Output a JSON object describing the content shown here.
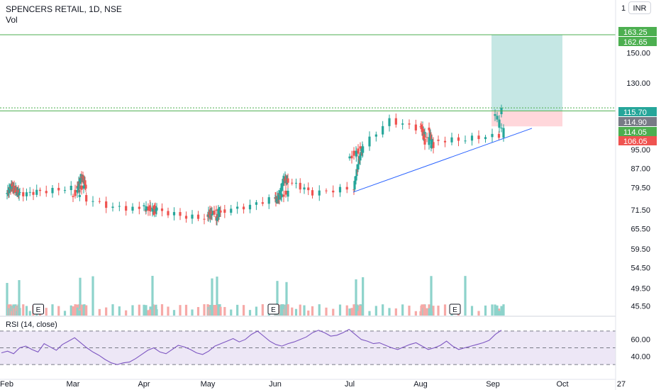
{
  "header": {
    "title": "SPENCERS RETAIL, 1D, NSE",
    "volume_label": "Vol",
    "currency_button": "INR",
    "currency_digit": "1"
  },
  "colors": {
    "up": "#26a69a",
    "down": "#ef5350",
    "volume_up": "#8dd3cb",
    "volume_down": "#f6a9a7",
    "level_line": "#4caf50",
    "trend_line": "#2962ff",
    "rsi_line": "#7e57c2",
    "rsi_band": "#ede7f6",
    "profit_zone": "#b2dfdb",
    "loss_zone": "#ffcdd2"
  },
  "chart_data": {
    "type": "candlestick",
    "title": "SPENCERS RETAIL, 1D, NSE",
    "x_axis": {
      "tick_labels": [
        "Feb",
        "Mar",
        "Apr",
        "May",
        "Jun",
        "Jul",
        "Aug",
        "Sep",
        "Oct",
        "27"
      ]
    },
    "y_axis": {
      "scale": "log",
      "range": [
        43.5,
        186
      ],
      "tick_labels": [
        "150.00",
        "130.00",
        "95.00",
        "87.00",
        "79.50",
        "71.50",
        "65.50",
        "59.50",
        "54.50",
        "49.50",
        "45.50"
      ]
    },
    "price_labels": [
      {
        "value": "163.25",
        "kind": "level"
      },
      {
        "value": "162.65",
        "kind": "level"
      },
      {
        "value": "115.70",
        "kind": "last"
      },
      {
        "value": "114.90",
        "kind": "neutral"
      },
      {
        "value": "114.05",
        "kind": "level"
      },
      {
        "value": "106.05",
        "kind": "stop"
      }
    ],
    "horizontal_levels": [
      163.25,
      115.7,
      114.05
    ],
    "trend_line": {
      "from": [
        "Jul",
        77.8
      ],
      "to": [
        "Sep",
        103.0
      ]
    },
    "position": {
      "entry": 114.05,
      "target": 163.25,
      "stop": 106.05
    },
    "earnings_markers": [
      {
        "label": "E",
        "month": "Feb-Mar"
      },
      {
        "label": "E",
        "month": "Jun"
      },
      {
        "label": "E",
        "month": "Aug-Sep"
      }
    ],
    "price_series": [
      {
        "x": "Feb",
        "close": 77.5
      },
      {
        "x": "Feb",
        "close": 80.0
      },
      {
        "x": "Feb",
        "close": 78.5
      },
      {
        "x": "Feb",
        "close": 77.0
      },
      {
        "x": "Feb-Mar",
        "close": 78.0
      },
      {
        "x": "Mar",
        "close": 79.5
      },
      {
        "x": "Mar",
        "close": 84.0
      },
      {
        "x": "Mar",
        "close": 80.0
      },
      {
        "x": "Mar",
        "close": 76.5
      },
      {
        "x": "Mar-Apr",
        "close": 72.5
      },
      {
        "x": "Apr",
        "close": 71.5
      },
      {
        "x": "Apr",
        "close": 71.5
      },
      {
        "x": "Apr",
        "close": 72.5
      },
      {
        "x": "Apr-May",
        "close": 69.5
      },
      {
        "x": "May",
        "close": 68.5
      },
      {
        "x": "May",
        "close": 71.5
      },
      {
        "x": "May",
        "close": 70.0
      },
      {
        "x": "May",
        "close": 70.5
      },
      {
        "x": "May-Jun",
        "close": 73.0
      },
      {
        "x": "Jun",
        "close": 77.5
      },
      {
        "x": "Jun",
        "close": 75.0
      },
      {
        "x": "Jun",
        "close": 76.5
      },
      {
        "x": "Jun",
        "close": 83.0
      },
      {
        "x": "Jun",
        "close": 82.0
      },
      {
        "x": "Jun-Jul",
        "close": 77.5
      },
      {
        "x": "Jul",
        "close": 79.5
      },
      {
        "x": "Jul",
        "close": 89.0
      },
      {
        "x": "Jul",
        "close": 96.0
      },
      {
        "x": "Jul",
        "close": 91.0
      },
      {
        "x": "Jul-Aug",
        "close": 109.0
      },
      {
        "x": "Aug",
        "close": 103.5
      },
      {
        "x": "Aug",
        "close": 96.0
      },
      {
        "x": "Aug",
        "close": 107.0
      },
      {
        "x": "Aug",
        "close": 98.5
      },
      {
        "x": "Aug-Sep",
        "close": 100.0
      },
      {
        "x": "Sep",
        "close": 102.0
      },
      {
        "x": "Sep",
        "close": 115.7
      }
    ],
    "rsi": {
      "label": "RSI (14, close)",
      "tick_labels": [
        "60.00",
        "40.00"
      ],
      "bands": [
        70,
        50,
        30
      ],
      "range": [
        25,
        75
      ],
      "values": [
        44,
        46,
        43,
        50,
        52,
        48,
        45,
        55,
        51,
        47,
        54,
        58,
        62,
        56,
        50,
        45,
        41,
        36,
        32,
        30,
        32,
        33,
        37,
        42,
        47,
        50,
        45,
        43,
        48,
        53,
        51,
        48,
        44,
        42,
        46,
        52,
        55,
        58,
        61,
        57,
        60,
        66,
        70,
        64,
        58,
        54,
        52,
        55,
        57,
        60,
        63,
        68,
        71,
        68,
        64,
        65,
        68,
        72,
        66,
        60,
        58,
        55,
        56,
        53,
        50,
        48,
        51,
        54,
        56,
        52,
        48,
        50,
        53,
        58,
        52,
        48,
        50,
        52,
        54,
        56,
        59,
        66,
        71
      ]
    }
  }
}
